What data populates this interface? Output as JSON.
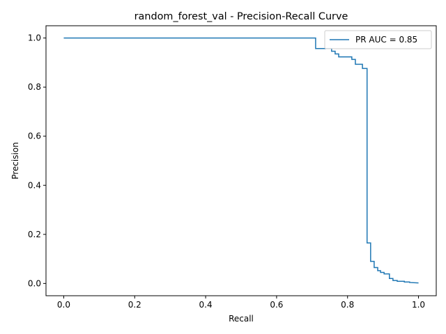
{
  "chart_data": {
    "type": "line",
    "title": "random_forest_val - Precision-Recall Curve",
    "xlabel": "Recall",
    "ylabel": "Precision",
    "xlim": [
      -0.05,
      1.05
    ],
    "ylim": [
      -0.05,
      1.05
    ],
    "xticks": [
      0.0,
      0.2,
      0.4,
      0.6,
      0.8,
      1.0
    ],
    "yticks": [
      0.0,
      0.2,
      0.4,
      0.6,
      0.8,
      1.0
    ],
    "xtick_labels": [
      "0.0",
      "0.2",
      "0.4",
      "0.6",
      "0.8",
      "1.0"
    ],
    "ytick_labels": [
      "0.0",
      "0.2",
      "0.4",
      "0.6",
      "0.8",
      "1.0"
    ],
    "grid": false,
    "legend_position": "top-right",
    "series": [
      {
        "name": "PR AUC = 0.85",
        "color": "#1f77b4",
        "drawstyle": "steps",
        "x": [
          0.0,
          0.71,
          0.71,
          0.755,
          0.755,
          0.765,
          0.765,
          0.775,
          0.775,
          0.812,
          0.812,
          0.822,
          0.822,
          0.842,
          0.842,
          0.855,
          0.855,
          0.865,
          0.865,
          0.875,
          0.875,
          0.885,
          0.885,
          0.893,
          0.893,
          0.903,
          0.903,
          0.918,
          0.918,
          0.928,
          0.928,
          0.94,
          0.94,
          0.96,
          0.96,
          0.975,
          0.975,
          1.0
        ],
        "y": [
          1.0,
          1.0,
          0.957,
          0.957,
          0.946,
          0.946,
          0.935,
          0.935,
          0.923,
          0.923,
          0.913,
          0.913,
          0.893,
          0.893,
          0.876,
          0.876,
          0.165,
          0.165,
          0.09,
          0.09,
          0.065,
          0.065,
          0.052,
          0.052,
          0.045,
          0.045,
          0.039,
          0.039,
          0.02,
          0.02,
          0.012,
          0.012,
          0.009,
          0.009,
          0.006,
          0.006,
          0.004,
          0.002
        ]
      }
    ]
  }
}
